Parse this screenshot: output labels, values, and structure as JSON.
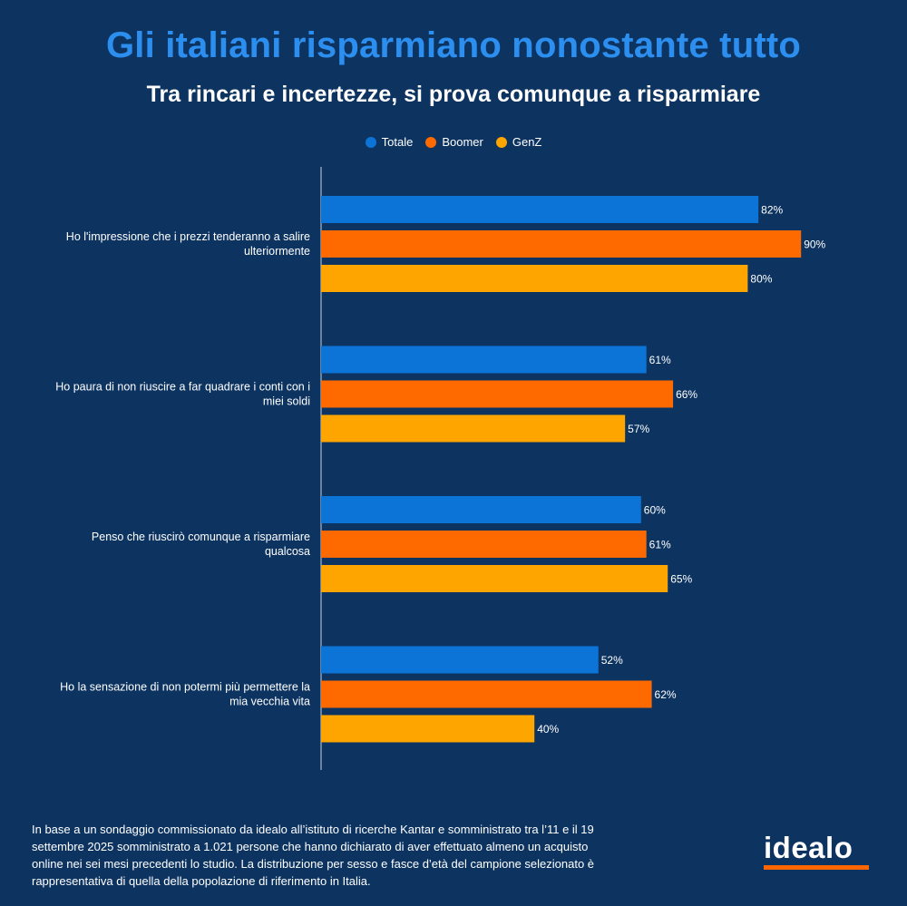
{
  "header": {
    "title": "Gli italiani risparmiano nonostante tutto",
    "subtitle": "Tra rincari e incertezze, si prova comunque a risparmiare"
  },
  "colors": {
    "Totale": "#0b74d6",
    "Boomer": "#ff6a00",
    "GenZ": "#ffa500",
    "background": "#0d3461",
    "title": "#2c8ff0"
  },
  "chart_data": {
    "type": "bar",
    "orientation": "horizontal",
    "categories": [
      [
        "Ho l'impressione che i prezzi tenderanno a salire",
        "ulteriormente"
      ],
      [
        "Ho paura di non riuscire a far quadrare i conti con i",
        "miei soldi"
      ],
      [
        "Penso che riuscirò comunque a risparmiare",
        "qualcosa"
      ],
      [
        "Ho la sensazione di non potermi più permettere la",
        "mia vecchia vita"
      ]
    ],
    "series": [
      {
        "name": "Totale",
        "values": [
          82,
          61,
          60,
          52
        ]
      },
      {
        "name": "Boomer",
        "values": [
          90,
          66,
          61,
          62
        ]
      },
      {
        "name": "GenZ",
        "values": [
          80,
          57,
          65,
          40
        ]
      }
    ],
    "value_suffix": "%",
    "xlim": [
      0,
      100
    ],
    "legend_position": "top-center",
    "grid": false
  },
  "footnote": "In base a un sondaggio commissionato da idealo all’istituto di ricerche Kantar e somministrato tra l’11 e il 19 settembre 2025 somministrato a 1.021 persone che hanno dichiarato di aver effettuato almeno un acquisto online nei sei mesi precedenti lo studio. La distribuzione per sesso e fasce d’età del campione selezionato è rappresentativa di quella della popolazione di riferimento in Italia.",
  "logo": {
    "text": "idealo",
    "accent": "#ff6600"
  }
}
